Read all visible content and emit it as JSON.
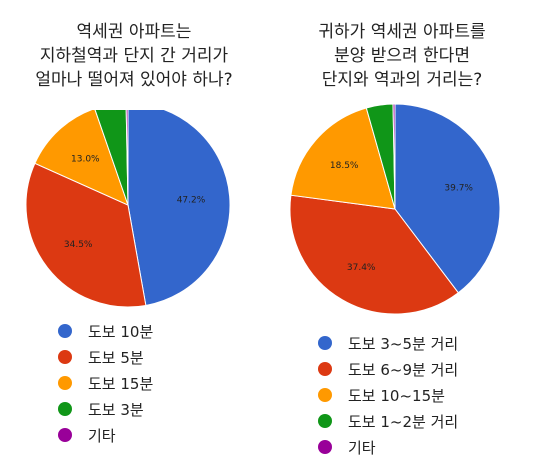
{
  "colors": {
    "blue": "#3366cc",
    "red": "#dc3912",
    "orange": "#ff9900",
    "green": "#109618",
    "purple": "#990099"
  },
  "chart_data": [
    {
      "type": "pie",
      "title_lines": [
        "역세권 아파트는",
        "지하철역과 단지 간 거리가",
        "얼마나 떨어져 있어야 하나?"
      ],
      "slices": [
        {
          "label": "도보 10분",
          "value": 47.2,
          "value_label": "47.2%",
          "color": "#3366cc"
        },
        {
          "label": "도보 5분",
          "value": 34.5,
          "value_label": "34.5%",
          "color": "#dc3912"
        },
        {
          "label": "도보 15분",
          "value": 13.0,
          "value_label": "13.0%",
          "color": "#ff9900"
        },
        {
          "label": "도보 3분",
          "value": 5.0,
          "value_label": "",
          "color": "#109618"
        },
        {
          "label": "기타",
          "value": 0.3,
          "value_label": "",
          "color": "#990099"
        }
      ],
      "legend_position": "bottom"
    },
    {
      "type": "pie",
      "title_lines": [
        "귀하가 역세권 아파트를",
        "분양 받으려 한다면",
        "단지와 역과의 거리는?"
      ],
      "slices": [
        {
          "label": "도보 3~5분 거리",
          "value": 39.7,
          "value_label": "39.7%",
          "color": "#3366cc"
        },
        {
          "label": "도보 6~9분 거리",
          "value": 37.4,
          "value_label": "37.4%",
          "color": "#dc3912"
        },
        {
          "label": "도보 10~15분",
          "value": 18.5,
          "value_label": "18.5%",
          "color": "#ff9900"
        },
        {
          "label": "도보 1~2분 거리",
          "value": 4.1,
          "value_label": "",
          "color": "#109618"
        },
        {
          "label": "기타",
          "value": 0.3,
          "value_label": "",
          "color": "#990099"
        }
      ],
      "legend_position": "bottom"
    }
  ]
}
